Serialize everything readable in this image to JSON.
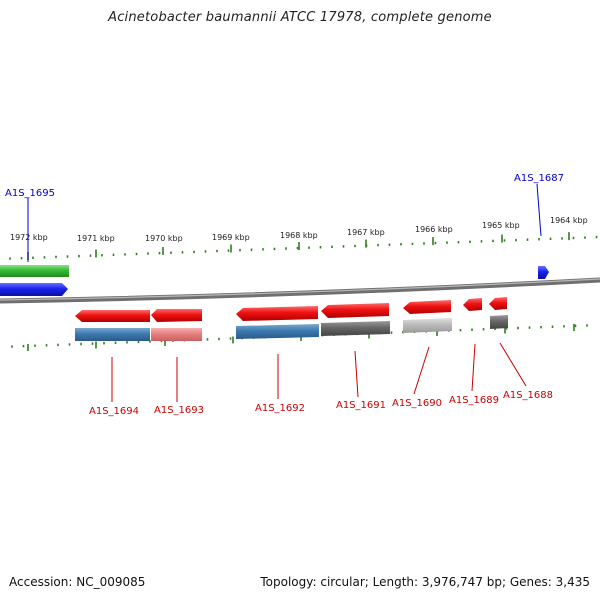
{
  "title": "Acinetobacter baumannii ATCC 17978, complete genome",
  "footer": {
    "accession": "Accession: NC_009085",
    "summary": "Topology: circular; Length: 3,976,747 bp; Genes: 3,435"
  },
  "ruler": {
    "upper_labels": [
      "1972 kbp",
      "1971 kbp",
      "1970 kbp",
      "1969 kbp",
      "1968 kbp",
      "1967 kbp",
      "1966 kbp",
      "1965 kbp",
      "1964 kbp"
    ],
    "tick_color": "#2e7d1f"
  },
  "colors": {
    "backbone": "#808080",
    "forward_label": "#0000cc",
    "reverse_label": "#cc0000",
    "red": "#ee1111",
    "green": "#33bb33",
    "blue": "#1a22ee",
    "steelblue": "#3d7ab0",
    "pink": "#e88080",
    "darkgray": "#666666",
    "lightgray": "#bbbbbb"
  },
  "gene_labels": {
    "forward": [
      "A1S_1695",
      "A1S_1687"
    ],
    "reverse": [
      "A1S_1694",
      "A1S_1693",
      "A1S_1692",
      "A1S_1691",
      "A1S_1690",
      "A1S_1689",
      "A1S_1688"
    ]
  }
}
